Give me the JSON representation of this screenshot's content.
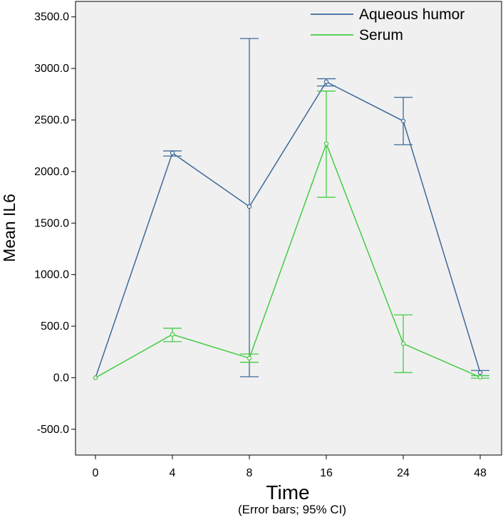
{
  "chart_data": {
    "type": "line",
    "title": "",
    "xlabel": "Time",
    "xlabel_note": "(Error bars; 95% CI)",
    "ylabel": "Mean IL6",
    "categories": [
      "0",
      "4",
      "8",
      "16",
      "24",
      "48"
    ],
    "ylim": [
      -750,
      3650
    ],
    "yticks": [
      -500,
      0,
      500,
      1000,
      1500,
      2000,
      2500,
      3000,
      3500
    ],
    "ytick_labels": [
      "-500.0",
      "0.0",
      "500.0",
      "1000.0",
      "1500.0",
      "2000.0",
      "2500.0",
      "3000.0",
      "3500.0"
    ],
    "grid": false,
    "legend_position": "top-right",
    "series": [
      {
        "name": "Aqueous humor",
        "color": "#3d6a99",
        "values": [
          0,
          2180,
          1660,
          2870,
          2490,
          50
        ],
        "ci_low": [
          0,
          2150,
          10,
          2830,
          2260,
          20
        ],
        "ci_high": [
          0,
          2200,
          3290,
          2900,
          2720,
          70
        ]
      },
      {
        "name": "Serum",
        "color": "#44cc44",
        "values": [
          0,
          420,
          190,
          2270,
          330,
          5
        ],
        "ci_low": [
          0,
          350,
          150,
          1750,
          50,
          -5
        ],
        "ci_high": [
          0,
          480,
          230,
          2780,
          610,
          20
        ]
      }
    ]
  }
}
